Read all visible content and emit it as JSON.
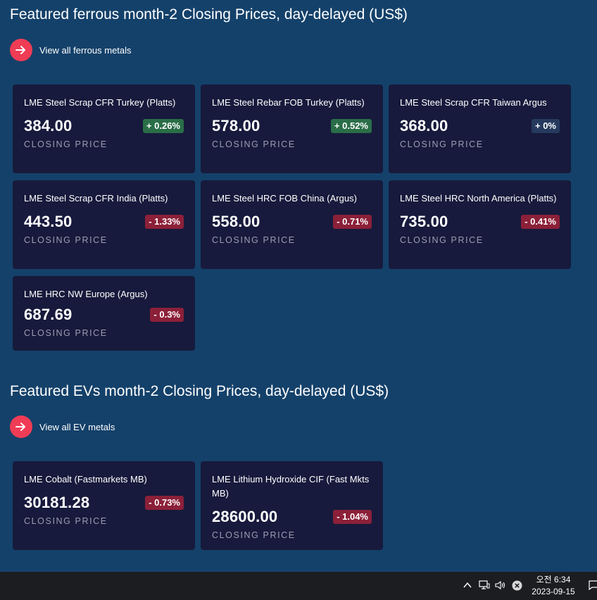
{
  "ferrous": {
    "title": "Featured ferrous month-2 Closing Prices, day-delayed (US$)",
    "view_all": "View all ferrous metals",
    "cards": [
      {
        "name": "LME Steel Scrap CFR Turkey (Platts)",
        "price": "384.00",
        "change": "+ 0.26%",
        "direction": "up",
        "label": "CLOSING PRICE"
      },
      {
        "name": "LME Steel Rebar FOB Turkey (Platts)",
        "price": "578.00",
        "change": "+ 0.52%",
        "direction": "up",
        "label": "CLOSING PRICE"
      },
      {
        "name": "LME Steel Scrap CFR Taiwan Argus",
        "price": "368.00",
        "change": "+ 0%",
        "direction": "flat",
        "label": "CLOSING PRICE"
      },
      {
        "name": "LME Steel Scrap CFR India (Platts)",
        "price": "443.50",
        "change": "- 1.33%",
        "direction": "down",
        "label": "CLOSING PRICE"
      },
      {
        "name": "LME Steel HRC FOB China (Argus)",
        "price": "558.00",
        "change": "- 0.71%",
        "direction": "down",
        "label": "CLOSING PRICE"
      },
      {
        "name": "LME Steel HRC North America (Platts)",
        "price": "735.00",
        "change": "- 0.41%",
        "direction": "down",
        "label": "CLOSING PRICE"
      },
      {
        "name": "LME HRC NW Europe (Argus)",
        "price": "687.69",
        "change": "- 0.3%",
        "direction": "down",
        "label": "CLOSING PRICE"
      }
    ]
  },
  "ev": {
    "title": "Featured EVs month-2 Closing Prices, day-delayed (US$)",
    "view_all": "View all EV metals",
    "cards": [
      {
        "name": "LME Cobalt (Fastmarkets MB)",
        "price": "30181.28",
        "change": "- 0.73%",
        "direction": "down",
        "label": "CLOSING PRICE"
      },
      {
        "name": "LME Lithium Hydroxide CIF (Fast Mkts MB)",
        "price": "28600.00",
        "change": "- 1.04%",
        "direction": "down",
        "label": "CLOSING PRICE"
      }
    ]
  },
  "colors": {
    "background": "#14416a",
    "card": "#171a3c",
    "accent": "#f03c55",
    "up": "#2a6e48",
    "down": "#8c2039"
  },
  "taskbar": {
    "time": "오전 6:34",
    "date": "2023-09-15",
    "icons": [
      "chevron-up-icon",
      "network-icon",
      "volume-icon",
      "close-circle-icon",
      "notification-icon"
    ]
  }
}
